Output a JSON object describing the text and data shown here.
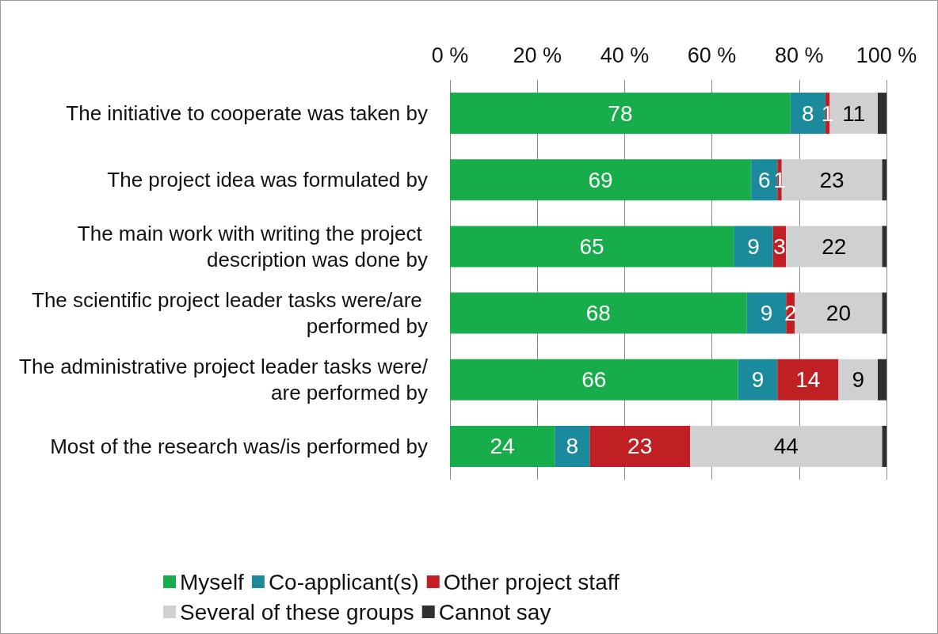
{
  "chart_data": {
    "type": "bar",
    "orientation": "horizontal",
    "stacked": true,
    "categories": [
      "The initiative to cooperate was taken by",
      "The project idea was formulated by",
      "The main work with writing the project description was done by",
      "The scientific project leader tasks were/are performed by",
      "The administrative project leader tasks were/are performed by",
      "Most of the research was/is performed by"
    ],
    "series": [
      {
        "name": "Myself",
        "color": "#17ad4a",
        "values": [
          78,
          69,
          65,
          68,
          66,
          24
        ],
        "value_labels": [
          "78",
          "69",
          "65",
          "68",
          "66",
          "24"
        ]
      },
      {
        "name": "Co-applicant(s)",
        "color": "#1a8a9c",
        "values": [
          8,
          6,
          9,
          9,
          9,
          8
        ],
        "value_labels": [
          "8",
          "6",
          "9",
          "9",
          "9",
          "8"
        ]
      },
      {
        "name": "Other project staff",
        "color": "#c01f24",
        "values": [
          1,
          1,
          3,
          2,
          14,
          23
        ],
        "value_labels": [
          "1",
          "1",
          "3",
          "2",
          "14",
          "23"
        ]
      },
      {
        "name": "Several of these groups",
        "color": "#cfd0d2",
        "values": [
          11,
          23,
          22,
          20,
          9,
          44
        ],
        "value_labels": [
          "11",
          "23",
          "22",
          "20",
          "9",
          "44"
        ]
      },
      {
        "name": "Cannot say",
        "color": "#2f302f",
        "values": [
          2,
          1,
          1,
          1,
          2,
          1
        ],
        "value_labels": [
          null,
          null,
          null,
          null,
          null,
          null
        ]
      }
    ],
    "xlim": [
      0,
      100
    ],
    "xticks": [
      {
        "value": 0,
        "label": "0 %"
      },
      {
        "value": 20,
        "label": "20 %"
      },
      {
        "value": 40,
        "label": "40 %"
      },
      {
        "value": 60,
        "label": "60 %"
      },
      {
        "value": 80,
        "label": "80 %"
      },
      {
        "value": 100,
        "label": "100 %"
      }
    ],
    "grid": "x",
    "legend": "bottom"
  }
}
